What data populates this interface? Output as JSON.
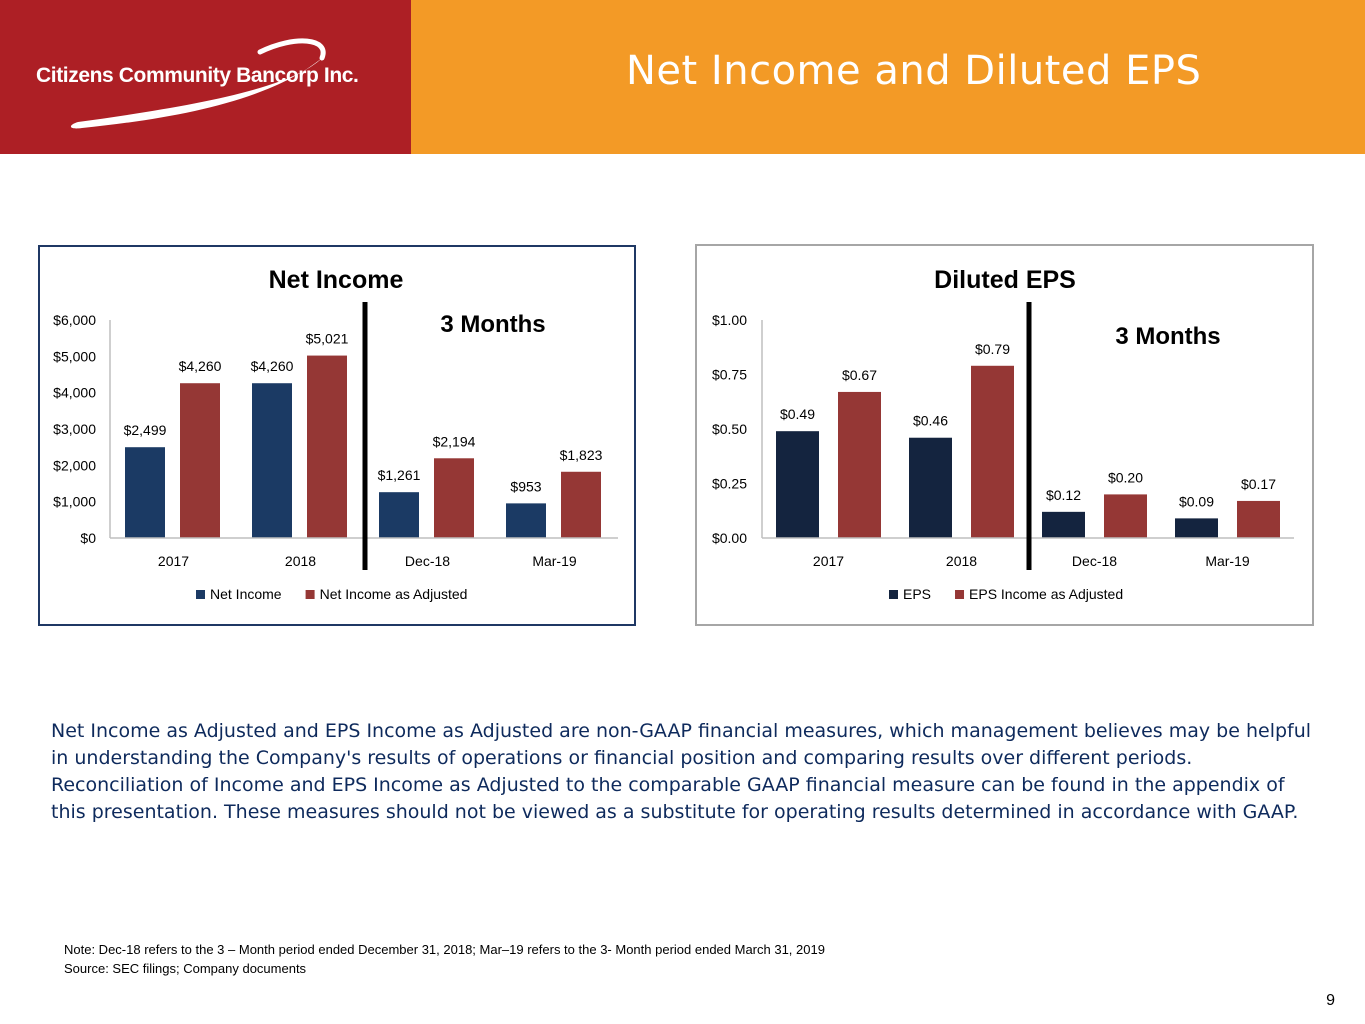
{
  "header": {
    "brand": "Citizens Community Bancorp Inc.",
    "title": "Net Income and Diluted EPS",
    "colors": {
      "brand_red": "#ad1f25",
      "accent_orange": "#f39a26"
    }
  },
  "chart_data": [
    {
      "type": "bar",
      "title": "Net Income",
      "annotation": "3 Months",
      "categories": [
        "2017",
        "2018",
        "Dec-18",
        "Mar-19"
      ],
      "series": [
        {
          "name": "Net Income",
          "color": "#1b3a64",
          "values": [
            2499,
            4260,
            1261,
            953
          ],
          "labels": [
            "$2,499",
            "$4,260",
            "$1,261",
            "$953"
          ]
        },
        {
          "name": "Net Income as Adjusted",
          "color": "#953735",
          "values": [
            4260,
            5021,
            2194,
            1823
          ],
          "labels": [
            "$4,260",
            "$5,021",
            "$2,194",
            "$1,823"
          ]
        }
      ],
      "yticks": [
        0,
        1000,
        2000,
        3000,
        4000,
        5000,
        6000
      ],
      "ytick_labels": [
        "$0",
        "$1,000",
        "$2,000",
        "$3,000",
        "$4,000",
        "$5,000",
        "$6,000"
      ],
      "ylim": [
        0,
        6000
      ],
      "grid": false,
      "legend": "bottom",
      "border_color": "#1f3864"
    },
    {
      "type": "bar",
      "title": "Diluted EPS",
      "annotation": "3 Months",
      "categories": [
        "2017",
        "2018",
        "Dec-18",
        "Mar-19"
      ],
      "series": [
        {
          "name": "EPS",
          "color": "#14243f",
          "values": [
            0.49,
            0.46,
            0.12,
            0.09
          ],
          "labels": [
            "$0.49",
            "$0.46",
            "$0.12",
            "$0.09"
          ]
        },
        {
          "name": "EPS Income as Adjusted",
          "color": "#953735",
          "values": [
            0.67,
            0.79,
            0.2,
            0.17
          ],
          "labels": [
            "$0.67",
            "$0.79",
            "$0.20",
            "$0.17"
          ]
        }
      ],
      "yticks": [
        0,
        0.25,
        0.5,
        0.75,
        1.0
      ],
      "ytick_labels": [
        "$0.00",
        "$0.25",
        "$0.50",
        "$0.75",
        "$1.00"
      ],
      "ylim": [
        0,
        1.0
      ],
      "grid": false,
      "legend": "bottom",
      "border_color": "#a6a6a6"
    }
  ],
  "body": {
    "text": "Net Income as Adjusted and EPS Income as Adjusted are non-GAAP financial measures, which management believes may be helpful in understanding the Company's results of operations or financial position and comparing results over different periods. Reconciliation of Income and EPS Income as Adjusted to the comparable GAAP financial measure can be found in the appendix of this presentation. These measures should not be viewed as a substitute for operating results determined in accordance with GAAP."
  },
  "footer": {
    "note": "Note: Dec-18 refers to the 3 – Month period ended December 31, 2018; Mar–19 refers to the 3- Month period ended March 31, 2019",
    "source": "Source: SEC filings; Company documents",
    "page_number": "9"
  }
}
